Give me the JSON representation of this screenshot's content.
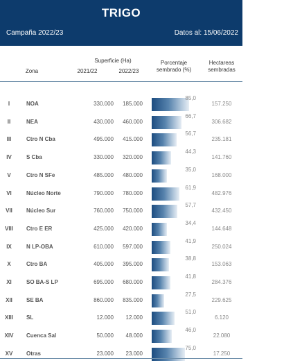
{
  "header": {
    "title": "TRIGO",
    "campaign": "Campaña 2022/23",
    "date": "Datos al: 15/06/2022"
  },
  "columns": {
    "superficie": "Superficie (Ha)",
    "zona": "Zona",
    "y2021": "2021/22",
    "y2022": "2022/23",
    "porcentaje_line1": "Porcentaje",
    "porcentaje_line2": "sembrado (%)",
    "hectareas_line1": "Hectareas",
    "hectareas_line2": "sembradas"
  },
  "colors": {
    "header_bg": "#0d3b6c",
    "bar_dark": "#1c4c80",
    "bar_light": "#e6edf4"
  },
  "rows": [
    {
      "roman": "I",
      "zona": "NOA",
      "s2021": "330.000",
      "s2022": "185.000",
      "pct": "85,0",
      "pct_value": 85.0,
      "ha": "157.250"
    },
    {
      "roman": "II",
      "zona": "NEA",
      "s2021": "430.000",
      "s2022": "460.000",
      "pct": "66,7",
      "pct_value": 66.7,
      "ha": "306.682"
    },
    {
      "roman": "III",
      "zona": "Ctro N Cba",
      "s2021": "495.000",
      "s2022": "415.000",
      "pct": "56,7",
      "pct_value": 56.7,
      "ha": "235.181"
    },
    {
      "roman": "IV",
      "zona": "S Cba",
      "s2021": "330.000",
      "s2022": "320.000",
      "pct": "44,3",
      "pct_value": 44.3,
      "ha": "141.760"
    },
    {
      "roman": "V",
      "zona": "Ctro N SFe",
      "s2021": "485.000",
      "s2022": "480.000",
      "pct": "35,0",
      "pct_value": 35.0,
      "ha": "168.000"
    },
    {
      "roman": "VI",
      "zona": "Núcleo Norte",
      "s2021": "790.000",
      "s2022": "780.000",
      "pct": "61,9",
      "pct_value": 61.9,
      "ha": "482.976"
    },
    {
      "roman": "VII",
      "zona": "Núcleo Sur",
      "s2021": "760.000",
      "s2022": "750.000",
      "pct": "57,7",
      "pct_value": 57.7,
      "ha": "432.450"
    },
    {
      "roman": "VIII",
      "zona": "Ctro E ER",
      "s2021": "425.000",
      "s2022": "420.000",
      "pct": "34,4",
      "pct_value": 34.4,
      "ha": "144.648"
    },
    {
      "roman": "IX",
      "zona": "N LP-OBA",
      "s2021": "610.000",
      "s2022": "597.000",
      "pct": "41,9",
      "pct_value": 41.9,
      "ha": "250.024"
    },
    {
      "roman": "X",
      "zona": "Ctro BA",
      "s2021": "405.000",
      "s2022": "395.000",
      "pct": "38,8",
      "pct_value": 38.8,
      "ha": "153.063"
    },
    {
      "roman": "XI",
      "zona": "SO BA-S LP",
      "s2021": "695.000",
      "s2022": "680.000",
      "pct": "41,8",
      "pct_value": 41.8,
      "ha": "284.376"
    },
    {
      "roman": "XII",
      "zona": "SE BA",
      "s2021": "860.000",
      "s2022": "835.000",
      "pct": "27,5",
      "pct_value": 27.5,
      "ha": "229.625"
    },
    {
      "roman": "XIII",
      "zona": "SL",
      "s2021": "12.000",
      "s2022": "12.000",
      "pct": "51,0",
      "pct_value": 51.0,
      "ha": "6.120"
    },
    {
      "roman": "XIV",
      "zona": "Cuenca Sal",
      "s2021": "50.000",
      "s2022": "48.000",
      "pct": "46,0",
      "pct_value": 46.0,
      "ha": "22.080"
    },
    {
      "roman": "XV",
      "zona": "Otras",
      "s2021": "23.000",
      "s2022": "23.000",
      "pct": "75,0",
      "pct_value": 75.0,
      "ha": "17.250"
    }
  ]
}
